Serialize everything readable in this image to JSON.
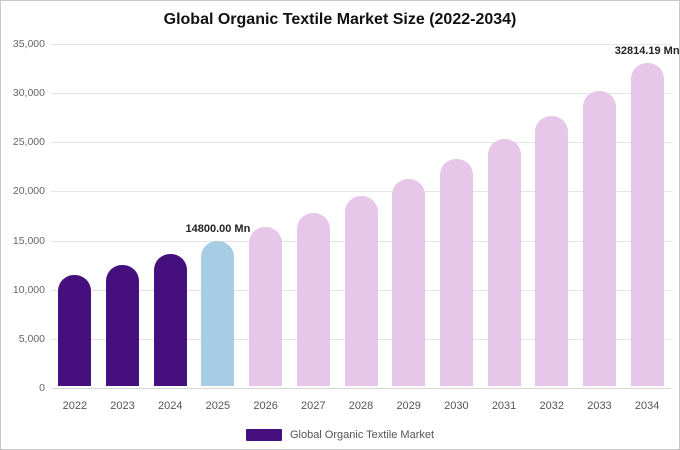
{
  "chart_data": {
    "type": "bar",
    "title": "Global Organic Textile Market Size (2022-2034)",
    "unit": "Mn",
    "categories": [
      "2022",
      "2023",
      "2024",
      "2025",
      "2026",
      "2027",
      "2028",
      "2029",
      "2030",
      "2031",
      "2032",
      "2033",
      "2034"
    ],
    "values": [
      11250,
      12300,
      13450,
      14800,
      16150,
      17650,
      19300,
      21100,
      23050,
      25150,
      27500,
      30050,
      32814.19
    ],
    "segments": [
      "historical",
      "historical",
      "historical",
      "current",
      "forecast",
      "forecast",
      "forecast",
      "forecast",
      "forecast",
      "forecast",
      "forecast",
      "forecast",
      "forecast"
    ],
    "colors": {
      "historical": "#45107d",
      "current": "#a7cde4",
      "forecast": "#e6c6e9"
    },
    "ylim": [
      0,
      35000
    ],
    "yticks": [
      0,
      5000,
      10000,
      15000,
      20000,
      25000,
      30000,
      35000
    ],
    "ytick_labels": [
      "0",
      "5,000",
      "10,000",
      "15,000",
      "20,000",
      "25,000",
      "30,000",
      "35,000"
    ],
    "grid": true,
    "legend": {
      "label": "Global Organic Textile Market",
      "swatch_color": "#45107d",
      "position": "bottom"
    },
    "annotations": [
      {
        "category": "2025",
        "text": "14800.00 Mn"
      },
      {
        "category": "2034",
        "text": "32814.19 Mn"
      }
    ]
  }
}
